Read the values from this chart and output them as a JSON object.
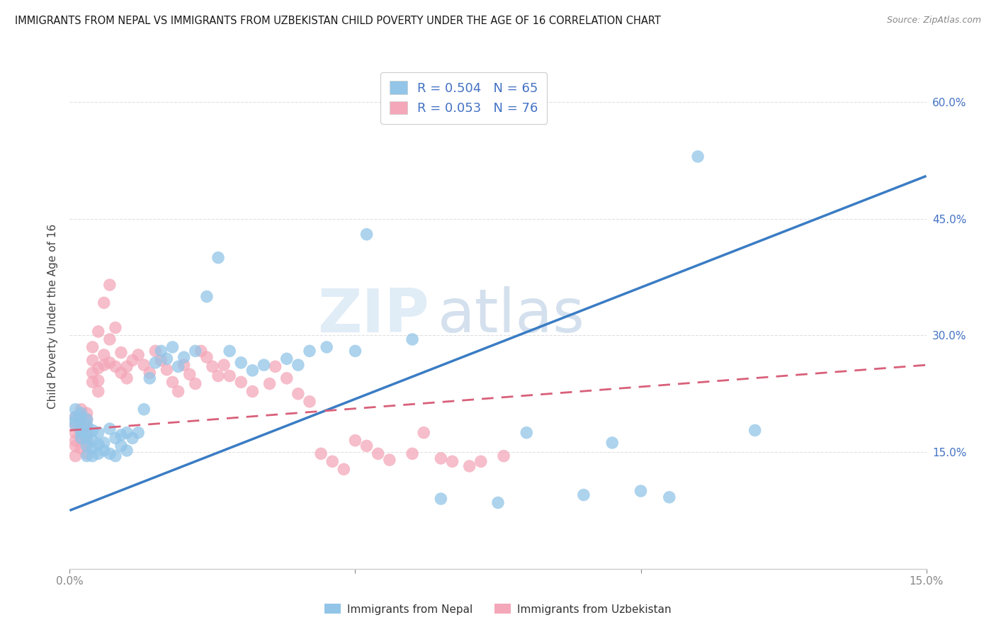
{
  "title": "IMMIGRANTS FROM NEPAL VS IMMIGRANTS FROM UZBEKISTAN CHILD POVERTY UNDER THE AGE OF 16 CORRELATION CHART",
  "source": "Source: ZipAtlas.com",
  "ylabel": "Child Poverty Under the Age of 16",
  "xlim": [
    0,
    0.15
  ],
  "ylim": [
    0,
    0.65
  ],
  "x_ticks": [
    0.0,
    0.05,
    0.1,
    0.15
  ],
  "x_tick_labels": [
    "0.0%",
    "",
    "",
    "15.0%"
  ],
  "y_ticks_right": [
    0.15,
    0.3,
    0.45,
    0.6
  ],
  "y_tick_labels_right": [
    "15.0%",
    "30.0%",
    "45.0%",
    "60.0%"
  ],
  "nepal_color": "#92c5e8",
  "uzbekistan_color": "#f4a7b9",
  "nepal_R": 0.504,
  "nepal_N": 65,
  "uzbekistan_R": 0.053,
  "uzbekistan_N": 76,
  "nepal_line_color": "#3a7cc4",
  "uzbekistan_line_color": "#d9607a",
  "watermark_zip": "ZIP",
  "watermark_atlas": "atlas",
  "nepal_line_x": [
    0.0,
    0.15
  ],
  "nepal_line_y": [
    0.075,
    0.505
  ],
  "uzbekistan_line_x": [
    0.0,
    0.15
  ],
  "uzbekistan_line_y": [
    0.178,
    0.262
  ],
  "background_color": "#ffffff",
  "grid_color": "#dddddd",
  "title_fontsize": 11,
  "axis_fontsize": 10,
  "legend_fontsize": 13,
  "nepal_scatter_x": [
    0.001,
    0.001,
    0.001,
    0.001,
    0.002,
    0.002,
    0.002,
    0.002,
    0.002,
    0.003,
    0.003,
    0.003,
    0.003,
    0.003,
    0.003,
    0.004,
    0.004,
    0.004,
    0.004,
    0.005,
    0.005,
    0.005,
    0.006,
    0.006,
    0.007,
    0.007,
    0.008,
    0.008,
    0.009,
    0.009,
    0.01,
    0.01,
    0.011,
    0.012,
    0.013,
    0.014,
    0.015,
    0.016,
    0.017,
    0.018,
    0.019,
    0.02,
    0.022,
    0.024,
    0.026,
    0.028,
    0.03,
    0.032,
    0.034,
    0.038,
    0.04,
    0.042,
    0.045,
    0.05,
    0.052,
    0.06,
    0.065,
    0.075,
    0.08,
    0.09,
    0.095,
    0.1,
    0.105,
    0.11,
    0.12
  ],
  "nepal_scatter_y": [
    0.195,
    0.205,
    0.185,
    0.19,
    0.2,
    0.195,
    0.18,
    0.175,
    0.168,
    0.185,
    0.192,
    0.175,
    0.168,
    0.158,
    0.145,
    0.178,
    0.165,
    0.155,
    0.145,
    0.175,
    0.16,
    0.148,
    0.162,
    0.152,
    0.18,
    0.148,
    0.168,
    0.145,
    0.172,
    0.158,
    0.175,
    0.152,
    0.168,
    0.175,
    0.205,
    0.245,
    0.265,
    0.28,
    0.27,
    0.285,
    0.26,
    0.272,
    0.28,
    0.35,
    0.4,
    0.28,
    0.265,
    0.255,
    0.262,
    0.27,
    0.262,
    0.28,
    0.285,
    0.28,
    0.43,
    0.295,
    0.09,
    0.085,
    0.175,
    0.095,
    0.162,
    0.1,
    0.092,
    0.53,
    0.178
  ],
  "uzbekistan_scatter_x": [
    0.001,
    0.001,
    0.001,
    0.001,
    0.001,
    0.001,
    0.002,
    0.002,
    0.002,
    0.002,
    0.002,
    0.003,
    0.003,
    0.003,
    0.003,
    0.003,
    0.003,
    0.004,
    0.004,
    0.004,
    0.004,
    0.005,
    0.005,
    0.005,
    0.005,
    0.006,
    0.006,
    0.006,
    0.007,
    0.007,
    0.007,
    0.008,
    0.008,
    0.009,
    0.009,
    0.01,
    0.01,
    0.011,
    0.012,
    0.013,
    0.014,
    0.015,
    0.016,
    0.017,
    0.018,
    0.019,
    0.02,
    0.021,
    0.022,
    0.023,
    0.024,
    0.025,
    0.026,
    0.027,
    0.028,
    0.03,
    0.032,
    0.035,
    0.036,
    0.038,
    0.04,
    0.042,
    0.044,
    0.046,
    0.048,
    0.05,
    0.052,
    0.054,
    0.056,
    0.06,
    0.062,
    0.065,
    0.067,
    0.07,
    0.072,
    0.076
  ],
  "uzbekistan_scatter_y": [
    0.195,
    0.185,
    0.175,
    0.165,
    0.158,
    0.145,
    0.205,
    0.195,
    0.175,
    0.168,
    0.155,
    0.2,
    0.192,
    0.182,
    0.172,
    0.162,
    0.148,
    0.285,
    0.268,
    0.252,
    0.24,
    0.305,
    0.258,
    0.242,
    0.228,
    0.342,
    0.275,
    0.262,
    0.365,
    0.295,
    0.265,
    0.31,
    0.26,
    0.278,
    0.252,
    0.26,
    0.245,
    0.268,
    0.275,
    0.262,
    0.252,
    0.28,
    0.268,
    0.256,
    0.24,
    0.228,
    0.262,
    0.25,
    0.238,
    0.28,
    0.272,
    0.26,
    0.248,
    0.262,
    0.248,
    0.24,
    0.228,
    0.238,
    0.26,
    0.245,
    0.225,
    0.215,
    0.148,
    0.138,
    0.128,
    0.165,
    0.158,
    0.148,
    0.14,
    0.148,
    0.175,
    0.142,
    0.138,
    0.132,
    0.138,
    0.145
  ]
}
